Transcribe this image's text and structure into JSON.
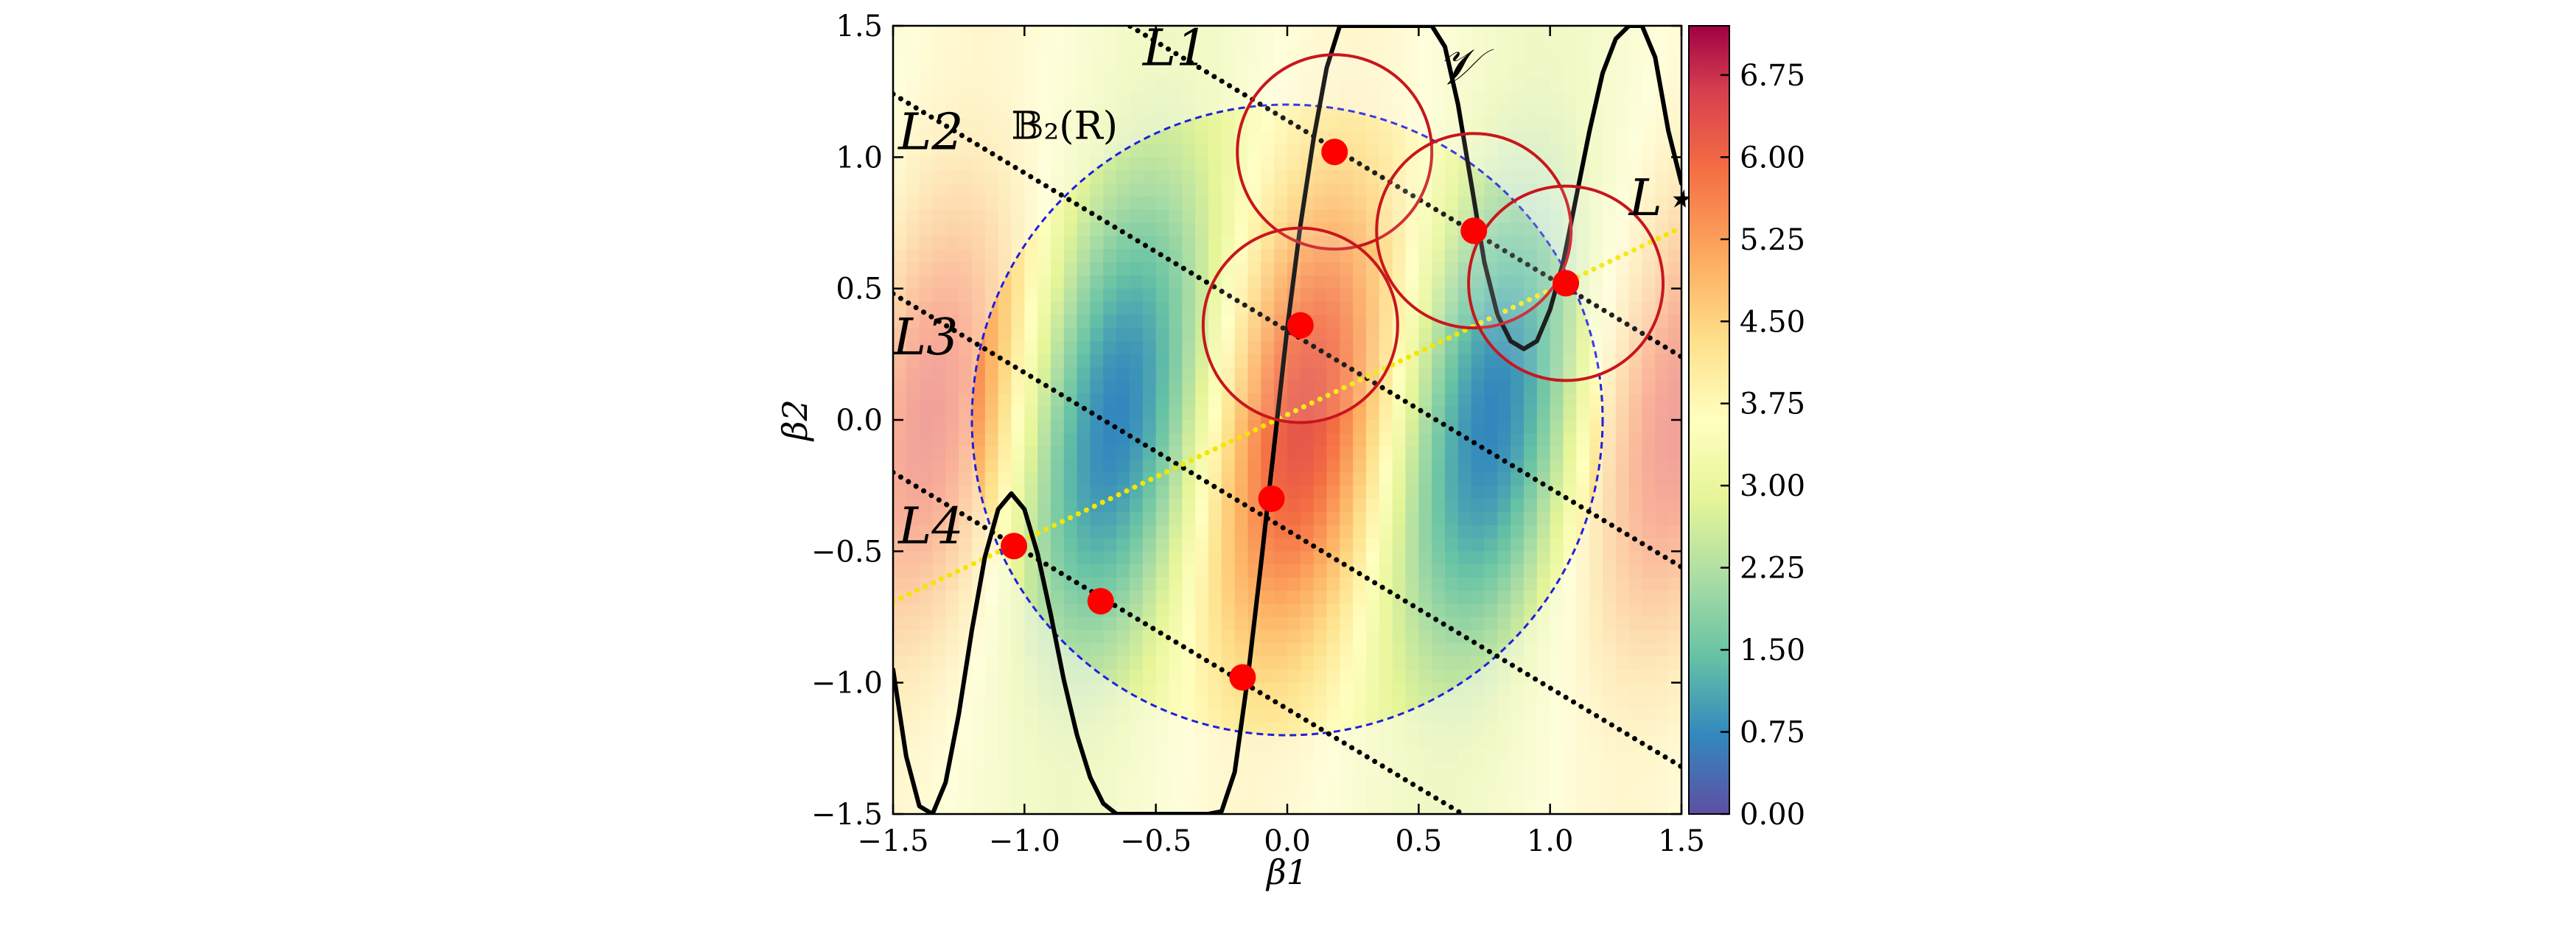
{
  "chart_data": {
    "type": "heatmap",
    "x_range": [
      -1.5,
      1.5
    ],
    "y_range": [
      -1.5,
      1.5
    ],
    "xlabel": "β1",
    "ylabel": "β2",
    "x_ticks": [
      "−1.5",
      "−1.0",
      "−0.5",
      "0.0",
      "0.5",
      "1.0",
      "1.5"
    ],
    "y_ticks": [
      "−1.5",
      "−1.0",
      "−0.5",
      "0.0",
      "0.5",
      "1.0",
      "1.5"
    ],
    "x_tick_values": [
      -1.5,
      -1.0,
      -0.5,
      0.0,
      0.5,
      1.0,
      1.5
    ],
    "y_tick_values": [
      -1.5,
      -1.0,
      -0.5,
      0.0,
      0.5,
      1.0,
      1.5
    ],
    "colormap": "Spectral_r",
    "colorbar": {
      "min": 0.0,
      "max": 7.2,
      "tick_values": [
        0.0,
        0.75,
        1.5,
        2.25,
        3.0,
        3.75,
        4.5,
        5.25,
        6.0,
        6.75
      ],
      "tick_labels": [
        "0.00",
        "0.75",
        "1.50",
        "2.25",
        "3.00",
        "3.75",
        "4.50",
        "5.25",
        "6.00",
        "6.75"
      ]
    },
    "ball": {
      "label": "𝔹₂(R)",
      "center": [
        0.0,
        0.0
      ],
      "radius": 1.2,
      "color": "#1f1fe0"
    },
    "curve": {
      "label": "𝒱",
      "color": "#000000",
      "x": [
        -1.5,
        -1.45,
        -1.4,
        -1.35,
        -1.3,
        -1.25,
        -1.2,
        -1.15,
        -1.1,
        -1.05,
        -1.0,
        -0.95,
        -0.9,
        -0.85,
        -0.8,
        -0.75,
        -0.7,
        -0.65,
        -0.6,
        -0.55,
        -0.5,
        -0.45,
        -0.4,
        -0.35,
        -0.3,
        -0.25,
        -0.2,
        -0.15,
        -0.1,
        -0.05,
        0.0,
        0.05,
        0.1,
        0.15,
        0.2,
        0.25,
        0.3,
        0.35,
        0.4,
        0.45,
        0.5,
        0.55,
        0.6,
        0.65,
        0.7,
        0.75,
        0.8,
        0.85,
        0.9,
        0.95,
        1.0,
        1.05,
        1.1,
        1.15,
        1.2,
        1.25,
        1.3,
        1.35,
        1.4,
        1.45,
        1.5
      ],
      "y": [
        -0.95,
        -1.28,
        -1.47,
        -1.5,
        -1.38,
        -1.12,
        -0.8,
        -0.52,
        -0.34,
        -0.28,
        -0.34,
        -0.51,
        -0.74,
        -0.99,
        -1.2,
        -1.36,
        -1.46,
        -1.5,
        -1.5,
        -1.5,
        -1.5,
        -1.5,
        -1.5,
        -1.5,
        -1.5,
        -1.49,
        -1.34,
        -0.98,
        -0.55,
        -0.1,
        0.35,
        0.74,
        1.07,
        1.34,
        1.5,
        1.5,
        1.5,
        1.5,
        1.5,
        1.5,
        1.5,
        1.5,
        1.42,
        1.2,
        0.9,
        0.6,
        0.4,
        0.3,
        0.27,
        0.3,
        0.42,
        0.6,
        0.85,
        1.1,
        1.32,
        1.45,
        1.5,
        1.5,
        1.38,
        1.1,
        0.9
      ]
    },
    "lines": [
      {
        "label": "L1",
        "slope": -0.6,
        "intercept": 1.14,
        "color": "#000000",
        "style": "dotted",
        "label_pos": [
          -0.55,
          1.35
        ]
      },
      {
        "label": "L2",
        "slope": -0.6,
        "intercept": 0.34,
        "color": "#000000",
        "style": "dotted",
        "label_pos": [
          -1.48,
          1.03
        ]
      },
      {
        "label": "L3",
        "slope": -0.6,
        "intercept": -0.42,
        "color": "#000000",
        "style": "dotted",
        "label_pos": [
          -1.5,
          0.25
        ]
      },
      {
        "label": "L4",
        "slope": -0.6,
        "intercept": -1.1,
        "color": "#000000",
        "style": "dotted",
        "label_pos": [
          -1.48,
          -0.47
        ]
      },
      {
        "label": "L⋆",
        "slope": 0.475,
        "intercept": 0.02,
        "color": "#f2e600",
        "style": "dotted",
        "label_pos": [
          1.3,
          0.78
        ]
      }
    ],
    "points": [
      [
        0.18,
        1.02
      ],
      [
        0.71,
        0.72
      ],
      [
        1.06,
        0.52
      ],
      [
        0.05,
        0.36
      ],
      [
        -0.06,
        -0.3
      ],
      [
        -1.04,
        -0.48
      ],
      [
        -0.71,
        -0.69
      ],
      [
        -0.17,
        -0.98
      ]
    ],
    "circles": [
      {
        "center": [
          0.18,
          1.02
        ],
        "radius": 0.37
      },
      {
        "center": [
          0.71,
          0.72
        ],
        "radius": 0.37
      },
      {
        "center": [
          1.06,
          0.52
        ],
        "radius": 0.37
      },
      {
        "center": [
          0.05,
          0.36
        ],
        "radius": 0.37
      }
    ],
    "curve_label_pos": [
      0.57,
      1.28
    ]
  }
}
